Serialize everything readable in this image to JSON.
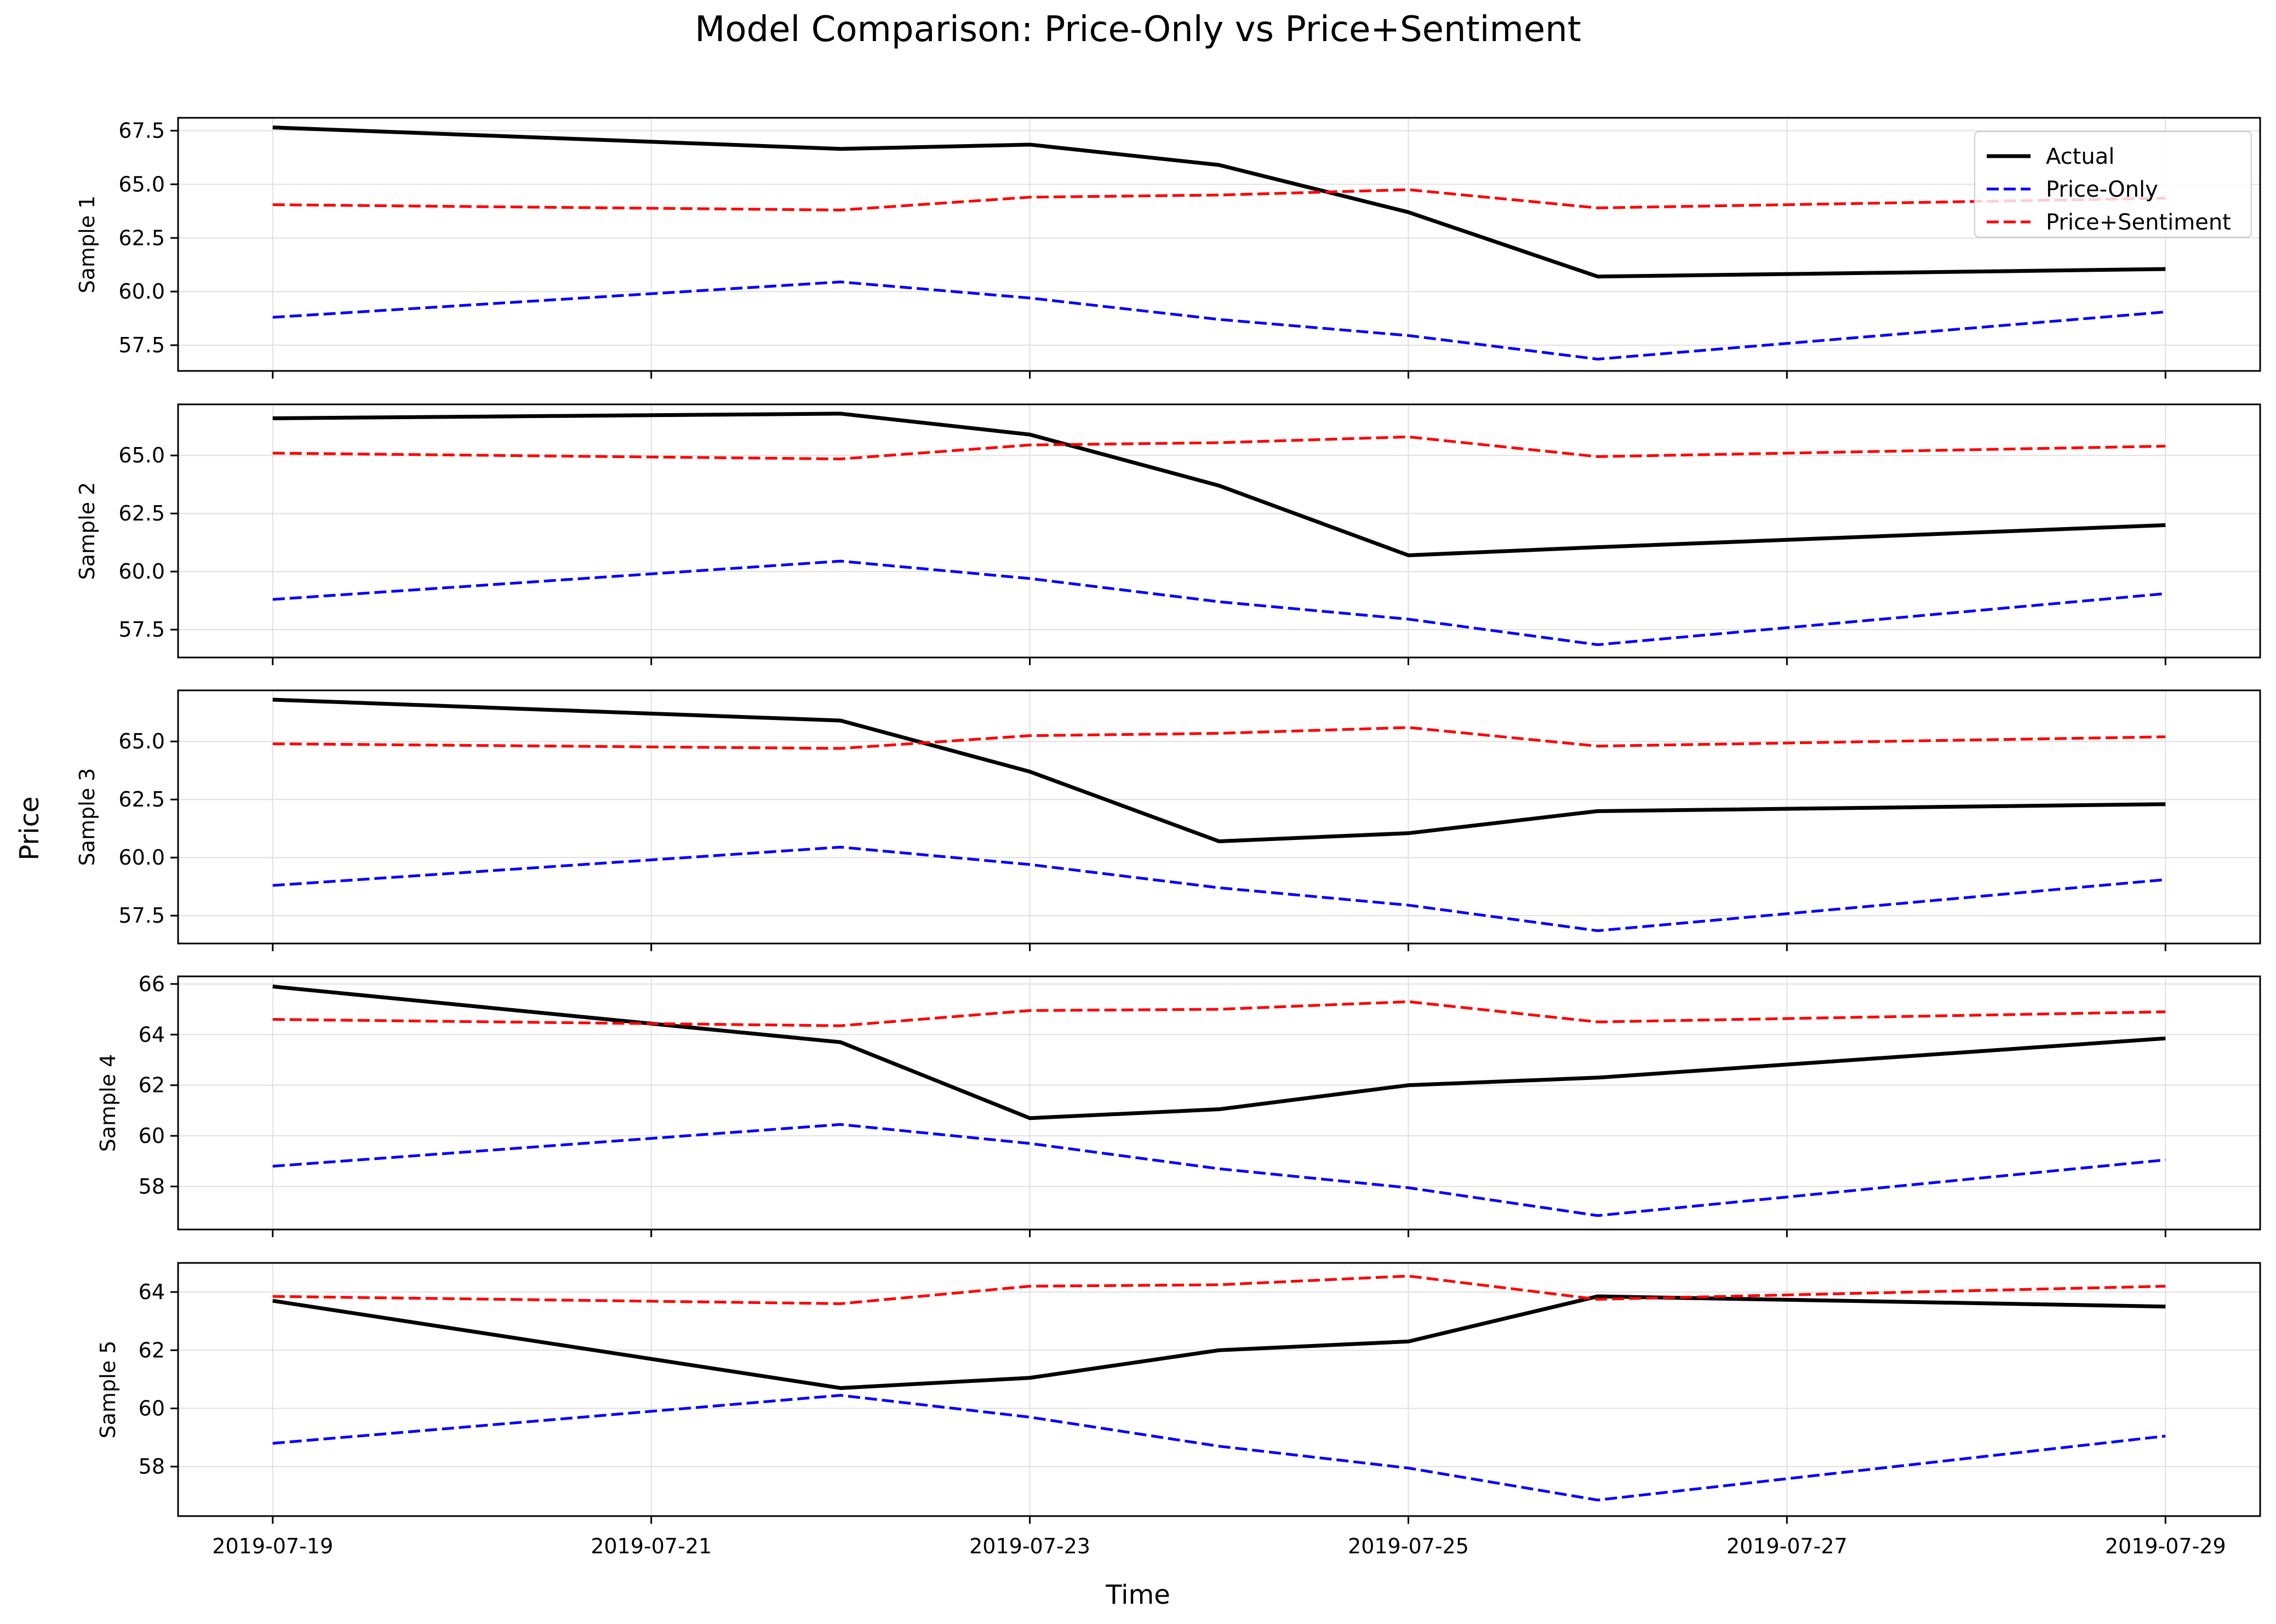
{
  "figure": {
    "title": "Model Comparison: Price-Only vs Price+Sentiment",
    "xlabel": "Time",
    "ylabel": "Price"
  },
  "legend": {
    "placement": "top-right",
    "entries": [
      {
        "label": "Actual",
        "color": "#000000",
        "style": "solid"
      },
      {
        "label": "Price-Only",
        "color": "#0000ff",
        "style": "dashed"
      },
      {
        "label": "Price+Sentiment",
        "color": "#ff0000",
        "style": "dashed"
      }
    ]
  },
  "chart_data": {
    "type": "line",
    "x_axis_type": "date",
    "x_ticks": [
      "2019-07-19",
      "2019-07-21",
      "2019-07-23",
      "2019-07-25",
      "2019-07-27",
      "2019-07-29"
    ],
    "xlim": [
      "2019-07-18T12:00",
      "2019-07-29T12:00"
    ],
    "grid": true,
    "shared_x": [
      "2019-07-19",
      "2019-07-22",
      "2019-07-23",
      "2019-07-24",
      "2019-07-25",
      "2019-07-26",
      "2019-07-29"
    ],
    "panels": [
      {
        "ylabel": "Sample 1",
        "ylim": [
          56.3,
          68.1
        ],
        "yticks": [
          "57.5",
          "60.0",
          "62.5",
          "65.0",
          "67.5"
        ],
        "show_legend": true,
        "series": [
          {
            "name": "Actual",
            "values": [
              67.65,
              66.65,
              66.85,
              65.9,
              63.7,
              60.7,
              61.05
            ]
          },
          {
            "name": "Price-Only",
            "values": [
              58.8,
              60.45,
              59.7,
              58.7,
              57.95,
              56.85,
              59.05
            ]
          },
          {
            "name": "Price+Sentiment",
            "values": [
              64.05,
              63.8,
              64.4,
              64.5,
              64.75,
              63.9,
              64.35
            ]
          }
        ]
      },
      {
        "ylabel": "Sample 2",
        "ylim": [
          56.3,
          67.2
        ],
        "yticks": [
          "57.5",
          "60.0",
          "62.5",
          "65.0"
        ],
        "show_legend": false,
        "series": [
          {
            "name": "Actual",
            "values": [
              66.6,
              66.8,
              65.9,
              63.7,
              60.7,
              61.05,
              62.0
            ]
          },
          {
            "name": "Price-Only",
            "values": [
              58.8,
              60.45,
              59.7,
              58.7,
              57.95,
              56.85,
              59.05
            ]
          },
          {
            "name": "Price+Sentiment",
            "values": [
              65.1,
              64.85,
              65.45,
              65.55,
              65.8,
              64.95,
              65.4
            ]
          }
        ]
      },
      {
        "ylabel": "Sample 3",
        "ylim": [
          56.3,
          67.2
        ],
        "yticks": [
          "57.5",
          "60.0",
          "62.5",
          "65.0"
        ],
        "show_legend": false,
        "series": [
          {
            "name": "Actual",
            "values": [
              66.8,
              65.9,
              63.7,
              60.7,
              61.05,
              62.0,
              62.3
            ]
          },
          {
            "name": "Price-Only",
            "values": [
              58.8,
              60.45,
              59.7,
              58.7,
              57.95,
              56.85,
              59.05
            ]
          },
          {
            "name": "Price+Sentiment",
            "values": [
              64.9,
              64.7,
              65.25,
              65.35,
              65.6,
              64.8,
              65.2
            ]
          }
        ]
      },
      {
        "ylabel": "Sample 4",
        "ylim": [
          56.3,
          66.3
        ],
        "yticks": [
          "58",
          "60",
          "62",
          "64",
          "66"
        ],
        "show_legend": false,
        "series": [
          {
            "name": "Actual",
            "values": [
              65.9,
              63.7,
              60.7,
              61.05,
              62.0,
              62.3,
              63.85
            ]
          },
          {
            "name": "Price-Only",
            "values": [
              58.8,
              60.45,
              59.7,
              58.7,
              57.95,
              56.85,
              59.05
            ]
          },
          {
            "name": "Price+Sentiment",
            "values": [
              64.6,
              64.35,
              64.95,
              65.0,
              65.3,
              64.5,
              64.9
            ]
          }
        ]
      },
      {
        "ylabel": "Sample 5",
        "ylim": [
          56.3,
          65.0
        ],
        "yticks": [
          "58",
          "60",
          "62",
          "64"
        ],
        "show_legend": false,
        "series": [
          {
            "name": "Actual",
            "values": [
              63.7,
              60.7,
              61.05,
              62.0,
              62.3,
              63.85,
              63.5
            ]
          },
          {
            "name": "Price-Only",
            "values": [
              58.8,
              60.45,
              59.7,
              58.7,
              57.95,
              56.85,
              59.05
            ]
          },
          {
            "name": "Price+Sentiment",
            "values": [
              63.85,
              63.6,
              64.2,
              64.25,
              64.55,
              63.75,
              64.2
            ]
          }
        ]
      }
    ]
  }
}
